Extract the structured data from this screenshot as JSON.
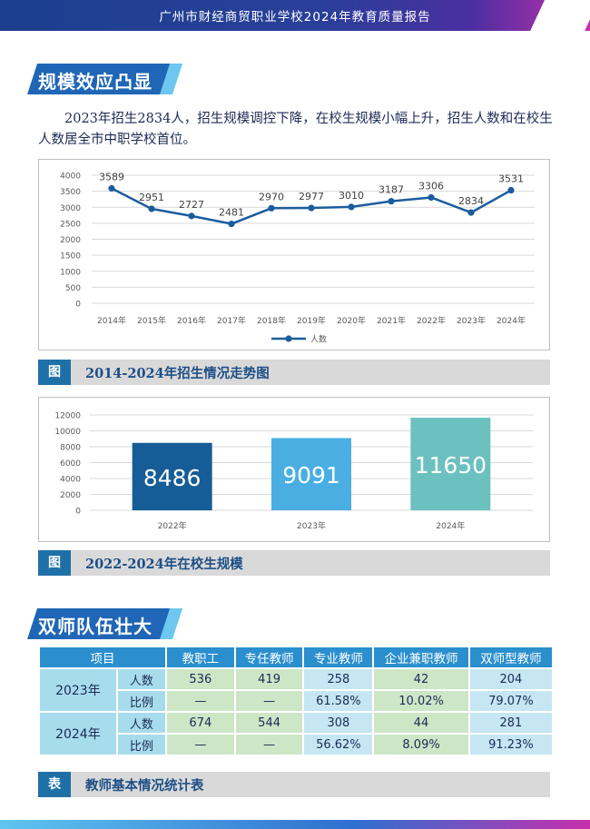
{
  "header": {
    "title": "广州市财经商贸职业学校2024年教育质量报告"
  },
  "section1": {
    "title": "规模效应凸显",
    "paragraph": "2023年招生2834人，招生规模调控下降，在校生规模小幅上升，招生人数和在校生人数居全市中职学校首位。"
  },
  "caption1": {
    "tag": "图",
    "text": "2014-2024年招生情况走势图"
  },
  "caption2": {
    "tag": "图",
    "text": "2022-2024年在校生规模"
  },
  "section2": {
    "title": "双师队伍壮大"
  },
  "caption3": {
    "tag": "表",
    "text": "教师基本情况统计表"
  },
  "chart_data": [
    {
      "type": "line",
      "categories": [
        "2014年",
        "2015年",
        "2016年",
        "2017年",
        "2018年",
        "2019年",
        "2020年",
        "2021年",
        "2022年",
        "2023年",
        "2024年"
      ],
      "series": [
        {
          "name": "人数",
          "values": [
            3589,
            2951,
            2727,
            2481,
            2970,
            2977,
            3010,
            3187,
            3306,
            2834,
            3531
          ]
        }
      ],
      "ylim": [
        0,
        4000
      ],
      "yticks": [
        0,
        500,
        1000,
        1500,
        2000,
        2500,
        3000,
        3500,
        4000
      ],
      "grid": true,
      "legend": "bottom",
      "color": "#1b5c9e"
    },
    {
      "type": "bar",
      "categories": [
        "2022年",
        "2023年",
        "2024年"
      ],
      "values": [
        8486,
        9091,
        11650
      ],
      "ylim": [
        0,
        12000
      ],
      "yticks": [
        0,
        2000,
        4000,
        6000,
        8000,
        10000,
        12000
      ],
      "grid": true,
      "colors": [
        "#165d97",
        "#4aaee2",
        "#6bc1bf"
      ]
    }
  ],
  "table": {
    "headers": [
      "项目",
      "教职工",
      "专任教师",
      "专业教师",
      "企业兼职教师",
      "双师型教师"
    ],
    "rows": [
      {
        "year": "2023年",
        "sub": "人数",
        "values": [
          "536",
          "419",
          "258",
          "42",
          "204"
        ]
      },
      {
        "year": "2023年",
        "sub": "比例",
        "values": [
          "—",
          "—",
          "61.58%",
          "10.02%",
          "79.07%"
        ]
      },
      {
        "year": "2024年",
        "sub": "人数",
        "values": [
          "674",
          "544",
          "308",
          "44",
          "281"
        ]
      },
      {
        "year": "2024年",
        "sub": "比例",
        "values": [
          "—",
          "—",
          "56.62%",
          "8.09%",
          "91.23%"
        ]
      }
    ]
  }
}
